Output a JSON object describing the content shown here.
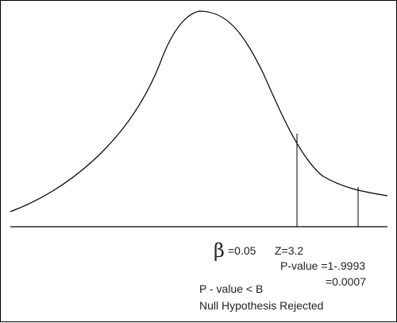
{
  "colors": {
    "background": "#ffffff",
    "line": "#000000",
    "text": "#222222"
  },
  "annotations": {
    "beta_symbol": "β",
    "beta_value": "=0.05",
    "z_value": "Z=3.2",
    "p_value_line1": "P-value =1-.9993",
    "p_value_line2": "=0.0007",
    "comparison": "P - value < B",
    "conclusion": "Null Hypothesis Rejected"
  }
}
